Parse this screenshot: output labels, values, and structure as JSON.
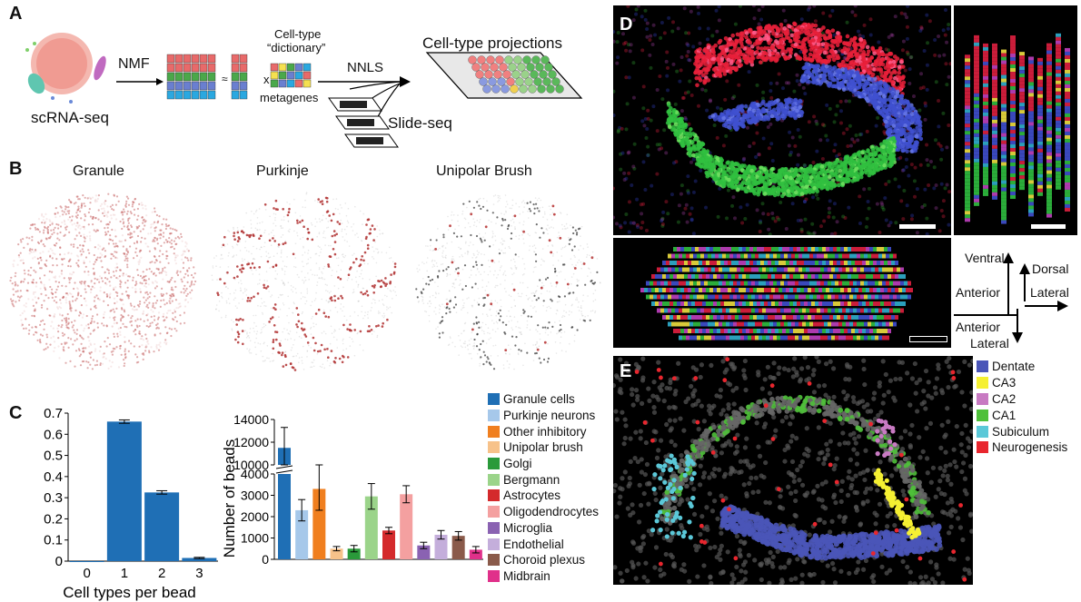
{
  "panels": {
    "A": "A",
    "B": "B",
    "C": "C",
    "D": "D",
    "E": "E"
  },
  "panelA": {
    "nmf": "NMF",
    "approx": "≈",
    "times": "x",
    "dict_line1": "Cell-type",
    "dict_line2": "“dictionary”",
    "metagenes": "metagenes",
    "nnls": "NNLS",
    "projections": "Cell-type projections",
    "scrna": "scRNA-seq",
    "slideseq": "Slide-seq"
  },
  "panelB": {
    "titles": [
      "Granule",
      "Purkinje",
      "Unipolar Brush"
    ]
  },
  "panelD": {
    "orientation": {
      "ventral": "Ventral",
      "dorsal": "Dorsal",
      "anterior": "Anterior",
      "lateral": "Lateral",
      "anterior2": "Anterior",
      "lateral2": "Lateral"
    }
  },
  "panelE": {
    "legend": [
      {
        "label": "Dentate",
        "color": "#4a55b8"
      },
      {
        "label": "CA3",
        "color": "#f5f032"
      },
      {
        "label": "CA2",
        "color": "#c87ac2"
      },
      {
        "label": "CA1",
        "color": "#4fc03a"
      },
      {
        "label": "Subiculum",
        "color": "#5bc8d8"
      },
      {
        "label": "Neurogenesis",
        "color": "#e8262e"
      }
    ]
  },
  "chart_data": [
    {
      "type": "bar",
      "title": "",
      "xlabel": "Cell types per bead",
      "ylabel": "",
      "categories": [
        "0",
        "1",
        "2",
        "3"
      ],
      "values": [
        0.0,
        0.66,
        0.325,
        0.015
      ],
      "errors": [
        0.0,
        0.008,
        0.008,
        0.003
      ],
      "ylim": [
        0,
        0.7
      ],
      "yticks": [
        "0",
        "0.1",
        "0.2",
        "0.3",
        "0.4",
        "0.5",
        "0.6",
        "0.7"
      ],
      "color": "#1f6fb5"
    },
    {
      "type": "bar",
      "title": "",
      "xlabel": "",
      "ylabel": "Number of beads",
      "axis_break": true,
      "yticks_lower": [
        "0",
        "1000",
        "2000",
        "3000",
        "4000"
      ],
      "yticks_upper": [
        "10000",
        "12000",
        "14000"
      ],
      "categories": [
        "Granule cells",
        "Purkinje neurons",
        "Other inhibitory",
        "Unipolar brush",
        "Golgi",
        "Bergmann",
        "Astrocytes",
        "Oligodendrocytes",
        "Microglia",
        "Endothelial",
        "Choroid plexus",
        "Midbrain"
      ],
      "values": [
        11500,
        2300,
        3300,
        500,
        500,
        2950,
        1350,
        3050,
        650,
        1150,
        1100,
        450
      ],
      "errors": [
        1800,
        500,
        1000,
        100,
        150,
        600,
        150,
        400,
        150,
        200,
        200,
        150
      ],
      "colors": [
        "#1f6fb5",
        "#a6c8ea",
        "#f07f1f",
        "#f7c28a",
        "#2a9a3a",
        "#9bd48a",
        "#d42a2c",
        "#f4a0a0",
        "#8a62b2",
        "#c4aedb",
        "#8a5a4a",
        "#e0308a"
      ]
    }
  ]
}
